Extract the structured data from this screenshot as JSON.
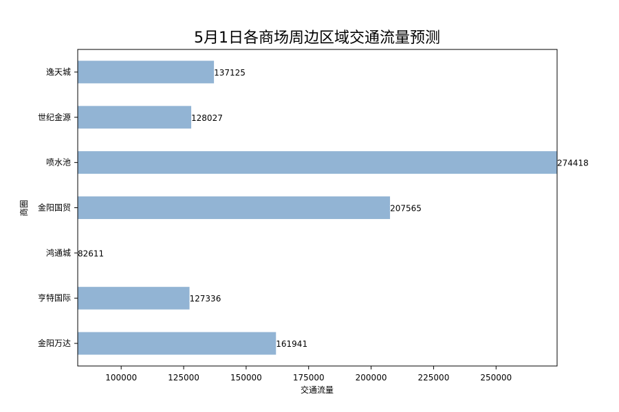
{
  "chart_data": {
    "type": "bar",
    "orientation": "horizontal",
    "title": "5月1日各商场周边区域交通流量预测",
    "xlabel": "交通流量",
    "ylabel": "商圈",
    "categories": [
      "逸天城",
      "世纪金源",
      "喷水池",
      "金阳国贸",
      "鸿通城",
      "亨特国际",
      "金阳万达"
    ],
    "values": [
      137125,
      128027,
      274418,
      207565,
      82611,
      127336,
      161941
    ],
    "data_labels": [
      "137125",
      "128027",
      "274418",
      "207565",
      "82611",
      "127336",
      "161941"
    ],
    "xlim": [
      82611,
      274418
    ],
    "xticks": [
      100000,
      125000,
      150000,
      175000,
      200000,
      225000,
      250000
    ],
    "xtick_labels": [
      "100000",
      "125000",
      "150000",
      "175000",
      "200000",
      "225000",
      "250000"
    ],
    "bar_color": "#92b4d4",
    "grid": false,
    "legend": "none"
  }
}
